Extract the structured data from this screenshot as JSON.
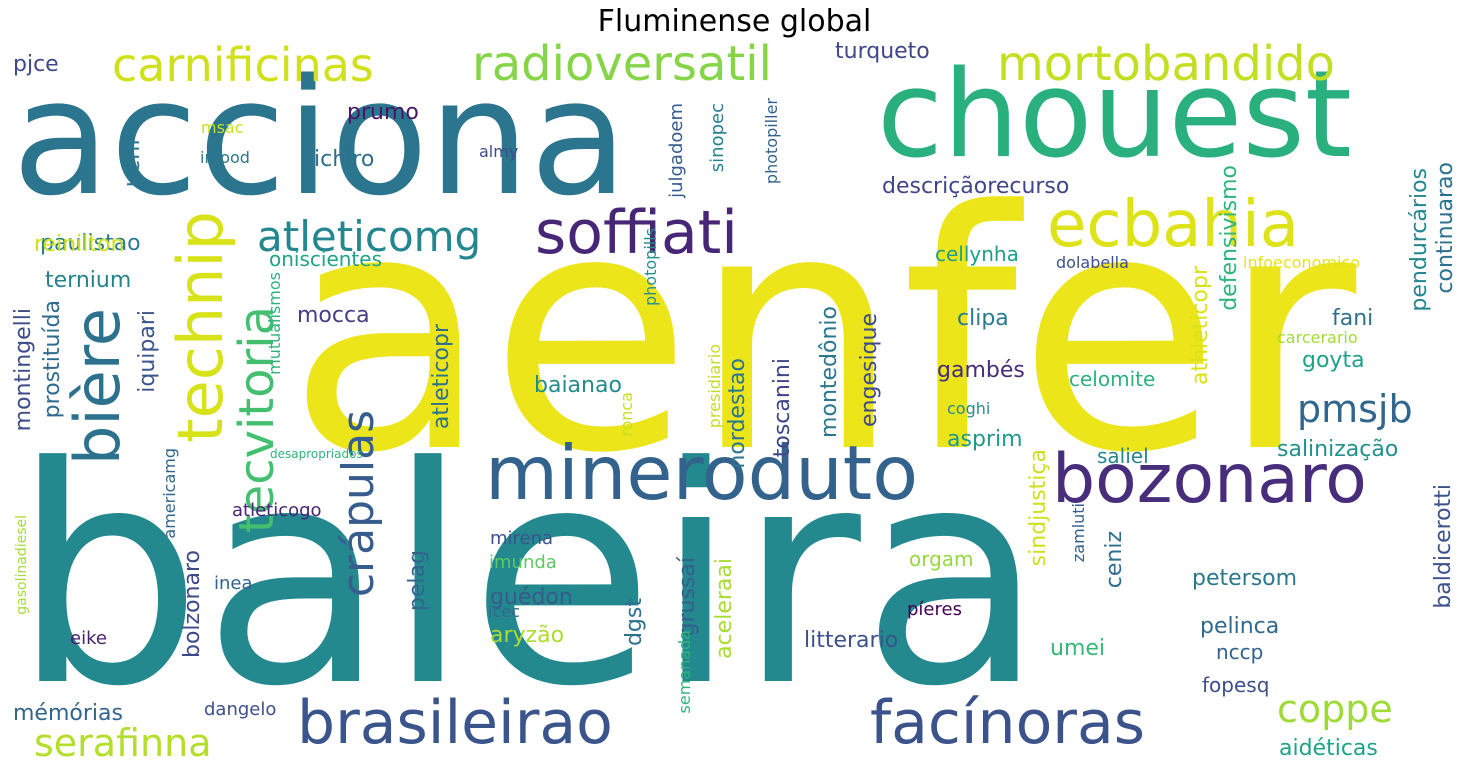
{
  "title": "Fluminense global",
  "words": [
    {
      "text": "aenfer",
      "color": "#ebe51a"
    },
    {
      "text": "baleira",
      "color": "#23898e"
    },
    {
      "text": "acciona",
      "color": "#2b758e"
    },
    {
      "text": "chouest",
      "color": "#2ab07f"
    },
    {
      "text": "mineroduto",
      "color": "#33638d"
    },
    {
      "text": "bozonaro",
      "color": "#472d7b"
    },
    {
      "text": "brasileirao",
      "color": "#3a548c"
    },
    {
      "text": "facínoras",
      "color": "#3b528b"
    },
    {
      "text": "soffiati",
      "color": "#482677"
    },
    {
      "text": "ecbahia",
      "color": "#dde318"
    },
    {
      "text": "mortobandido",
      "color": "#c2df23"
    },
    {
      "text": "radioversatil",
      "color": "#86d549"
    },
    {
      "text": "carnificinas",
      "color": "#d0e11c"
    },
    {
      "text": "technip",
      "color": "#d8e219"
    },
    {
      "text": "bière",
      "color": "#2c728e"
    },
    {
      "text": "atleticomg",
      "color": "#24868e"
    },
    {
      "text": "tecvitoria",
      "color": "#44bf70"
    },
    {
      "text": "crápulas",
      "color": "#365d8d"
    },
    {
      "text": "pmsjb",
      "color": "#31678e"
    },
    {
      "text": "coppe",
      "color": "#a0da39"
    },
    {
      "text": "serafinna",
      "color": "#b5de2b"
    },
    {
      "text": "turqueto",
      "color": "#3f4788"
    },
    {
      "text": "pjce",
      "color": "#3e4989"
    },
    {
      "text": "prumo",
      "color": "#481769"
    },
    {
      "text": "ichiro",
      "color": "#2e6f8e"
    },
    {
      "text": "msac",
      "color": "#c8e020"
    },
    {
      "text": "infood",
      "color": "#2a788e"
    },
    {
      "text": "almy",
      "color": "#3e4a89"
    },
    {
      "text": "uenf",
      "color": "#2c738e"
    },
    {
      "text": "paulistao",
      "color": "#287d8e"
    },
    {
      "text": "reinilton",
      "color": "#cde11d"
    },
    {
      "text": "descriçãorecurso",
      "color": "#404688"
    },
    {
      "text": "cellynha",
      "color": "#1f9e89"
    },
    {
      "text": "dolabella",
      "color": "#3b518b"
    },
    {
      "text": "infoeconomico",
      "color": "#e5e419"
    },
    {
      "text": "oniscientes",
      "color": "#20a386"
    },
    {
      "text": "ternium",
      "color": "#25838e"
    },
    {
      "text": "montingelli",
      "color": "#3d4d8a"
    },
    {
      "text": "prostituída",
      "color": "#2f6b8e"
    },
    {
      "text": "mocca",
      "color": "#433e85"
    },
    {
      "text": "clipa",
      "color": "#287c8e"
    },
    {
      "text": "fani",
      "color": "#2d708e"
    },
    {
      "text": "goyta",
      "color": "#1fa188"
    },
    {
      "text": "gambés",
      "color": "#472c7a"
    },
    {
      "text": "celomite",
      "color": "#2db27d"
    },
    {
      "text": "carcerario",
      "color": "#a2da37"
    },
    {
      "text": "baianao",
      "color": "#228c8d"
    },
    {
      "text": "asprim",
      "color": "#1e9b8a"
    },
    {
      "text": "coghi",
      "color": "#228d8d"
    },
    {
      "text": "saliel",
      "color": "#24878e"
    },
    {
      "text": "salinização",
      "color": "#21918c"
    },
    {
      "text": "desapropriados",
      "color": "#2fb47c"
    },
    {
      "text": "atleticogo",
      "color": "#482475"
    },
    {
      "text": "petersom",
      "color": "#2a788e"
    },
    {
      "text": "guédon",
      "color": "#38598c"
    },
    {
      "text": "aryzão",
      "color": "#addc30"
    },
    {
      "text": "orgam",
      "color": "#95d840"
    },
    {
      "text": "imunda",
      "color": "#5ec962"
    },
    {
      "text": "mirena",
      "color": "#3b528b"
    },
    {
      "text": "inea",
      "color": "#33638d"
    },
    {
      "text": "píeres",
      "color": "#440154"
    },
    {
      "text": "pelinca",
      "color": "#31688e"
    },
    {
      "text": "litterario",
      "color": "#3b518b"
    },
    {
      "text": "umei",
      "color": "#35b779"
    },
    {
      "text": "nccp",
      "color": "#33628d"
    },
    {
      "text": "fopesq",
      "color": "#3c4f8a"
    },
    {
      "text": "icec",
      "color": "#31688e"
    },
    {
      "text": "eike",
      "color": "#482071"
    },
    {
      "text": "mémórias",
      "color": "#32658e"
    },
    {
      "text": "dangelo",
      "color": "#3c508b"
    },
    {
      "text": "aidéticas",
      "color": "#1fa287"
    },
    {
      "text": "julgadoem",
      "color": "#375b8d"
    },
    {
      "text": "sinopec",
      "color": "#26818e"
    },
    {
      "text": "photopiller",
      "color": "#33638d"
    },
    {
      "text": "photopills",
      "color": "#21908d"
    },
    {
      "text": "continuarao",
      "color": "#2d718e"
    },
    {
      "text": "pendurcários",
      "color": "#24868e"
    },
    {
      "text": "athleticopr",
      "color": "#dae319"
    },
    {
      "text": "defensivismo",
      "color": "#2fb47c"
    },
    {
      "text": "iquipari",
      "color": "#3a548c"
    },
    {
      "text": "americamg",
      "color": "#31668e"
    },
    {
      "text": "mutualismos",
      "color": "#2db27d"
    },
    {
      "text": "atleticopr",
      "color": "#2c728e"
    },
    {
      "text": "nordestao",
      "color": "#2a768e"
    },
    {
      "text": "toscanini",
      "color": "#404588"
    },
    {
      "text": "montedônio",
      "color": "#2a778e"
    },
    {
      "text": "engesique",
      "color": "#3e4989"
    },
    {
      "text": "presidiario",
      "color": "#c0df25"
    },
    {
      "text": "ronca",
      "color": "#c5e021"
    },
    {
      "text": "sindjustiça",
      "color": "#cde11d"
    },
    {
      "text": "zamluti",
      "color": "#355e8d"
    },
    {
      "text": "ceniz",
      "color": "#2e6e8e"
    },
    {
      "text": "baldicerotti",
      "color": "#3b528b"
    },
    {
      "text": "bolzonaro",
      "color": "#3e4989"
    },
    {
      "text": "pelag",
      "color": "#32658e"
    },
    {
      "text": "grussaí",
      "color": "#345f8d"
    },
    {
      "text": "dgst",
      "color": "#2d708e"
    },
    {
      "text": "aceleraai",
      "color": "#a8db34"
    },
    {
      "text": "semanada",
      "color": "#2eb37c"
    },
    {
      "text": "gasolinadiesel",
      "color": "#a5db36"
    }
  ]
}
